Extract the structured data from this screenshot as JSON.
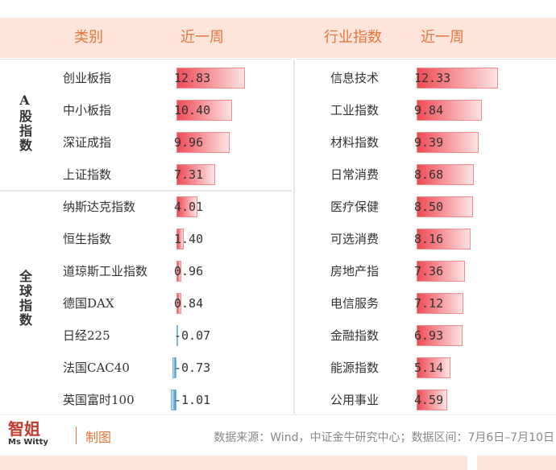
{
  "header": {
    "category": "类别",
    "week_left": "近一周",
    "industry": "行业指数",
    "week_right": "近一周"
  },
  "groups": [
    {
      "label": "A股指数",
      "rows": [
        {
          "name": "创业板指",
          "change": {
            "value": 12.83,
            "label": "12.83"
          }
        },
        {
          "name": "中小板指",
          "change": {
            "value": 10.4,
            "label": "10.40"
          }
        },
        {
          "name": "深证成指",
          "change": {
            "value": 9.96,
            "label": "9.96"
          }
        },
        {
          "name": "上证指数",
          "change": {
            "value": 7.31,
            "label": "7.31"
          }
        }
      ]
    },
    {
      "label": "全球指数",
      "rows": [
        {
          "name": "纳斯达克指数",
          "change": {
            "value": 4.01,
            "label": "4.01"
          }
        },
        {
          "name": "恒生指数",
          "change": {
            "value": 1.4,
            "label": "1.40"
          }
        },
        {
          "name": "道琼斯工业指数",
          "change": {
            "value": 0.96,
            "label": "0.96"
          }
        },
        {
          "name": "德国DAX",
          "change": {
            "value": 0.84,
            "label": "0.84"
          }
        },
        {
          "name": "日经225",
          "change": {
            "value": -0.07,
            "label": "-0.07"
          }
        },
        {
          "name": "法国CAC40",
          "change": {
            "value": -0.73,
            "label": "-0.73"
          }
        },
        {
          "name": "英国富时100",
          "change": {
            "value": -1.01,
            "label": "-1.01"
          }
        }
      ]
    }
  ],
  "industries": [
    {
      "name": "信息技术",
      "change": {
        "value": 12.33,
        "label": "12.33"
      }
    },
    {
      "name": "工业指数",
      "change": {
        "value": 9.84,
        "label": "9.84"
      }
    },
    {
      "name": "材料指数",
      "change": {
        "value": 9.39,
        "label": "9.39"
      }
    },
    {
      "name": "日常消费",
      "change": {
        "value": 8.68,
        "label": "8.68"
      }
    },
    {
      "name": "医疗保健",
      "change": {
        "value": 8.5,
        "label": "8.50"
      }
    },
    {
      "name": "可选消费",
      "change": {
        "value": 8.16,
        "label": "8.16"
      }
    },
    {
      "name": "房地产指",
      "change": {
        "value": 7.36,
        "label": "7.36"
      }
    },
    {
      "name": "电信服务",
      "change": {
        "value": 7.12,
        "label": "7.12"
      }
    },
    {
      "name": "金融指数",
      "change": {
        "value": 6.93,
        "label": "6.93"
      }
    },
    {
      "name": "能源指数",
      "change": {
        "value": 5.14,
        "label": "5.14"
      }
    },
    {
      "name": "公用事业",
      "change": {
        "value": 4.59,
        "label": "4.59"
      }
    }
  ],
  "footer": {
    "brand_en": "Ms Witty",
    "brand_cn": "智姐",
    "credit": "制图",
    "source": "数据来源：Wind，中证金牛研究中心；数据区间：7月6日–7月10日"
  }
}
